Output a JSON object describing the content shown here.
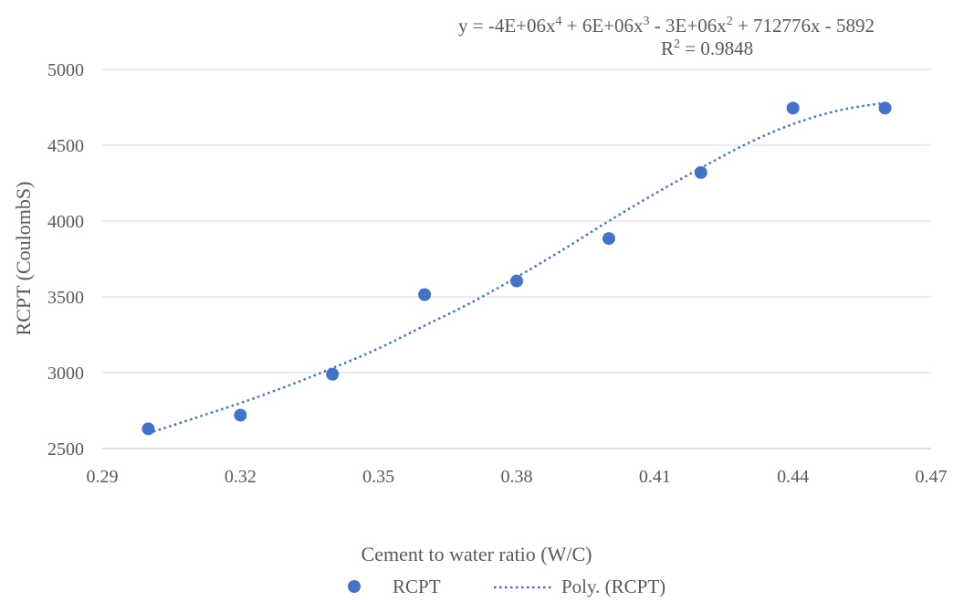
{
  "chart_data": {
    "type": "scatter",
    "title": "",
    "xlabel": "Cement to water ratio (W/C)",
    "ylabel": "RCPT (CoulombS)",
    "xlim": [
      0.29,
      0.47
    ],
    "ylim": [
      2500,
      5000
    ],
    "x_ticks": [
      "0.29",
      "0.32",
      "0.35",
      "0.38",
      "0.41",
      "0.44",
      "0.47"
    ],
    "y_ticks": [
      "2500",
      "3000",
      "3500",
      "4000",
      "4500",
      "5000"
    ],
    "grid": "horizontal",
    "legend_position": "bottom",
    "series": [
      {
        "name": "RCPT",
        "color": "#4472C4",
        "x": [
          0.3,
          0.32,
          0.34,
          0.36,
          0.38,
          0.4,
          0.42,
          0.44,
          0.46
        ],
        "y": [
          2630,
          2720,
          2990,
          3515,
          3605,
          3885,
          4320,
          4745,
          4745
        ]
      }
    ],
    "trendline": {
      "name": "Poly. (RCPT)",
      "type": "polynomial",
      "order": 4,
      "color": "#4472C4",
      "style": "dotted",
      "x": [
        0.3,
        0.31,
        0.32,
        0.33,
        0.34,
        0.35,
        0.36,
        0.37,
        0.38,
        0.39,
        0.4,
        0.41,
        0.42,
        0.43,
        0.44,
        0.45,
        0.46
      ],
      "y": [
        2600,
        2700,
        2800,
        2910,
        3030,
        3160,
        3310,
        3460,
        3630,
        3810,
        4000,
        4180,
        4350,
        4510,
        4640,
        4730,
        4780
      ],
      "equation_line1_prefix": "y = -4E+06x",
      "equation_exp1": "4",
      "equation_part2": " + 6E+06x",
      "equation_exp2": "3",
      "equation_part3": " - 3E+06x",
      "equation_exp3": "2",
      "equation_part4": " + 712776x - 5892",
      "r2_prefix": "R",
      "r2_exp": "2",
      "r2_value": " = 0.9848"
    },
    "legend": [
      {
        "label": "RCPT",
        "marker": "circle"
      },
      {
        "label": "Poly. (RCPT)",
        "marker": "dotted-line"
      }
    ]
  }
}
